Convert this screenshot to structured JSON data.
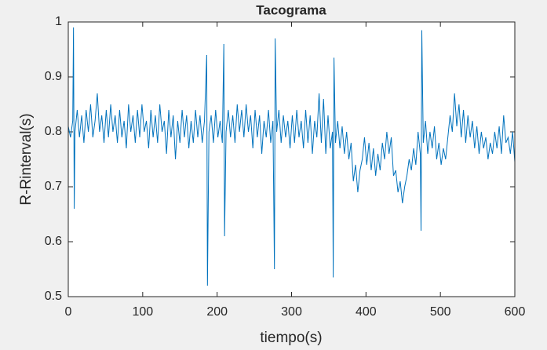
{
  "chart_data": {
    "type": "line",
    "title": "Tacograma",
    "x_label": "tiempo(s)",
    "y_label": "R-Rinterval(s)",
    "x": [
      0,
      3,
      6,
      7,
      8,
      9,
      12,
      15,
      18,
      21,
      24,
      27,
      30,
      33,
      36,
      39,
      42,
      45,
      48,
      51,
      54,
      57,
      60,
      63,
      66,
      69,
      72,
      75,
      78,
      81,
      84,
      87,
      90,
      93,
      96,
      99,
      102,
      105,
      108,
      111,
      114,
      117,
      120,
      123,
      126,
      129,
      132,
      135,
      138,
      141,
      144,
      147,
      150,
      153,
      156,
      159,
      162,
      165,
      168,
      171,
      174,
      177,
      180,
      183,
      186,
      187,
      189,
      192,
      195,
      198,
      201,
      204,
      207,
      209,
      210,
      212,
      215,
      218,
      221,
      224,
      227,
      230,
      233,
      236,
      239,
      242,
      245,
      248,
      251,
      254,
      257,
      260,
      263,
      266,
      269,
      272,
      275,
      277,
      278,
      280,
      283,
      286,
      289,
      292,
      295,
      298,
      301,
      304,
      307,
      310,
      313,
      316,
      319,
      322,
      325,
      328,
      331,
      334,
      337,
      340,
      343,
      346,
      349,
      352,
      355,
      356,
      357,
      359,
      362,
      365,
      368,
      371,
      374,
      377,
      380,
      383,
      386,
      389,
      392,
      395,
      398,
      401,
      404,
      407,
      410,
      413,
      416,
      419,
      422,
      425,
      428,
      431,
      434,
      437,
      440,
      443,
      446,
      449,
      452,
      455,
      458,
      461,
      464,
      467,
      470,
      473,
      474,
      475,
      477,
      480,
      483,
      486,
      489,
      492,
      495,
      498,
      501,
      504,
      507,
      510,
      513,
      516,
      519,
      522,
      525,
      528,
      531,
      534,
      537,
      540,
      543,
      546,
      549,
      552,
      555,
      558,
      561,
      564,
      567,
      570,
      573,
      576,
      579,
      582,
      585,
      588,
      591,
      594,
      597,
      600
    ],
    "series": [
      {
        "name": "R-R",
        "color": "#0072bd",
        "values": [
          0.81,
          0.79,
          0.82,
          0.99,
          0.66,
          0.8,
          0.84,
          0.79,
          0.83,
          0.78,
          0.84,
          0.8,
          0.85,
          0.79,
          0.82,
          0.87,
          0.8,
          0.83,
          0.78,
          0.84,
          0.79,
          0.85,
          0.8,
          0.83,
          0.78,
          0.84,
          0.79,
          0.82,
          0.77,
          0.85,
          0.8,
          0.83,
          0.78,
          0.84,
          0.79,
          0.85,
          0.8,
          0.82,
          0.77,
          0.84,
          0.79,
          0.83,
          0.78,
          0.85,
          0.8,
          0.82,
          0.76,
          0.84,
          0.79,
          0.83,
          0.75,
          0.82,
          0.78,
          0.84,
          0.79,
          0.83,
          0.77,
          0.82,
          0.78,
          0.84,
          0.79,
          0.83,
          0.78,
          0.82,
          0.94,
          0.52,
          0.8,
          0.83,
          0.78,
          0.84,
          0.79,
          0.82,
          0.78,
          0.96,
          0.61,
          0.8,
          0.84,
          0.79,
          0.83,
          0.78,
          0.85,
          0.8,
          0.84,
          0.79,
          0.85,
          0.8,
          0.83,
          0.77,
          0.84,
          0.79,
          0.83,
          0.76,
          0.82,
          0.79,
          0.84,
          0.78,
          0.82,
          0.55,
          0.97,
          0.8,
          0.84,
          0.78,
          0.83,
          0.79,
          0.82,
          0.77,
          0.83,
          0.78,
          0.84,
          0.79,
          0.82,
          0.77,
          0.84,
          0.78,
          0.83,
          0.76,
          0.82,
          0.79,
          0.87,
          0.78,
          0.86,
          0.76,
          0.83,
          0.77,
          0.8,
          0.535,
          0.935,
          0.78,
          0.82,
          0.77,
          0.81,
          0.76,
          0.8,
          0.75,
          0.78,
          0.71,
          0.74,
          0.69,
          0.73,
          0.75,
          0.79,
          0.74,
          0.78,
          0.73,
          0.77,
          0.72,
          0.76,
          0.73,
          0.78,
          0.75,
          0.8,
          0.76,
          0.79,
          0.72,
          0.73,
          0.69,
          0.71,
          0.67,
          0.7,
          0.72,
          0.75,
          0.73,
          0.77,
          0.74,
          0.8,
          0.76,
          0.62,
          0.985,
          0.78,
          0.82,
          0.76,
          0.8,
          0.77,
          0.81,
          0.75,
          0.78,
          0.74,
          0.77,
          0.75,
          0.79,
          0.83,
          0.8,
          0.87,
          0.81,
          0.85,
          0.79,
          0.84,
          0.78,
          0.83,
          0.79,
          0.82,
          0.77,
          0.81,
          0.76,
          0.8,
          0.77,
          0.79,
          0.75,
          0.78,
          0.76,
          0.8,
          0.77,
          0.81,
          0.76,
          0.83,
          0.78,
          0.79,
          0.76,
          0.8,
          0.745
        ]
      }
    ],
    "xlim": [
      0,
      600
    ],
    "xticks": [
      0,
      100,
      200,
      300,
      400,
      500,
      600
    ],
    "ylim": [
      0.5,
      1
    ],
    "yticks": [
      0.5,
      0.6,
      0.7,
      0.8,
      0.9,
      1
    ]
  }
}
